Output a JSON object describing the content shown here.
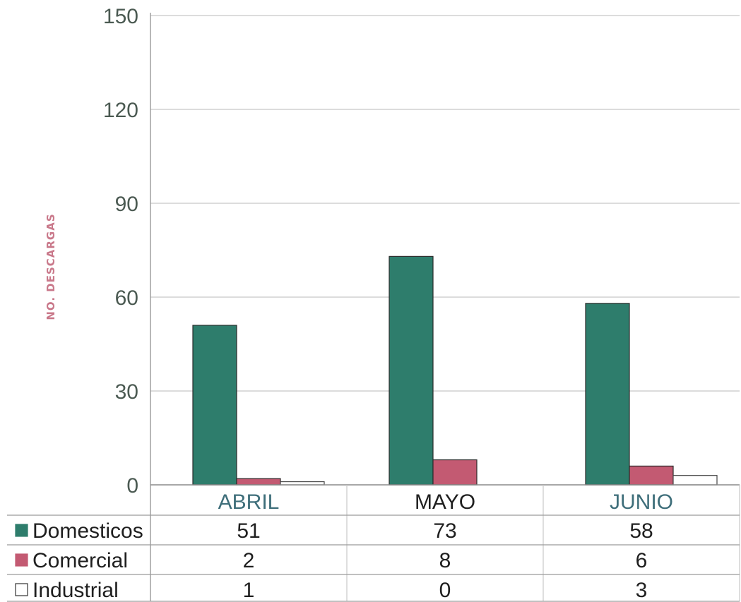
{
  "chart_data": {
    "type": "bar",
    "ylabel": "NO. DESCARGAS",
    "categories": [
      "ABRIL",
      "MAYO",
      "JUNIO"
    ],
    "ylim": [
      0,
      150
    ],
    "yticks": [
      0,
      30,
      60,
      90,
      120,
      150
    ],
    "grid": true,
    "legend_placement": "data-table-below",
    "series": [
      {
        "name": "Domesticos",
        "values": [
          51,
          73,
          58
        ],
        "color": "#2e7d6c"
      },
      {
        "name": "Comercial",
        "values": [
          2,
          8,
          6
        ],
        "color": "#c35a72"
      },
      {
        "name": "Industrial",
        "values": [
          1,
          0,
          3
        ],
        "color": "#ffffff"
      }
    ],
    "data_table_values": [
      [
        "51",
        "73",
        "58"
      ],
      [
        "2",
        "8",
        "6"
      ],
      [
        "1",
        "0",
        "3"
      ]
    ],
    "colors": {
      "ylabel": "#c9788a",
      "grid": "#c8c8c8",
      "axis": "#9a9a9a",
      "cat_abril": "#3e6e7a",
      "cat_mayo": "#1f1f1f",
      "cat_junio": "#3e6e7a"
    }
  }
}
